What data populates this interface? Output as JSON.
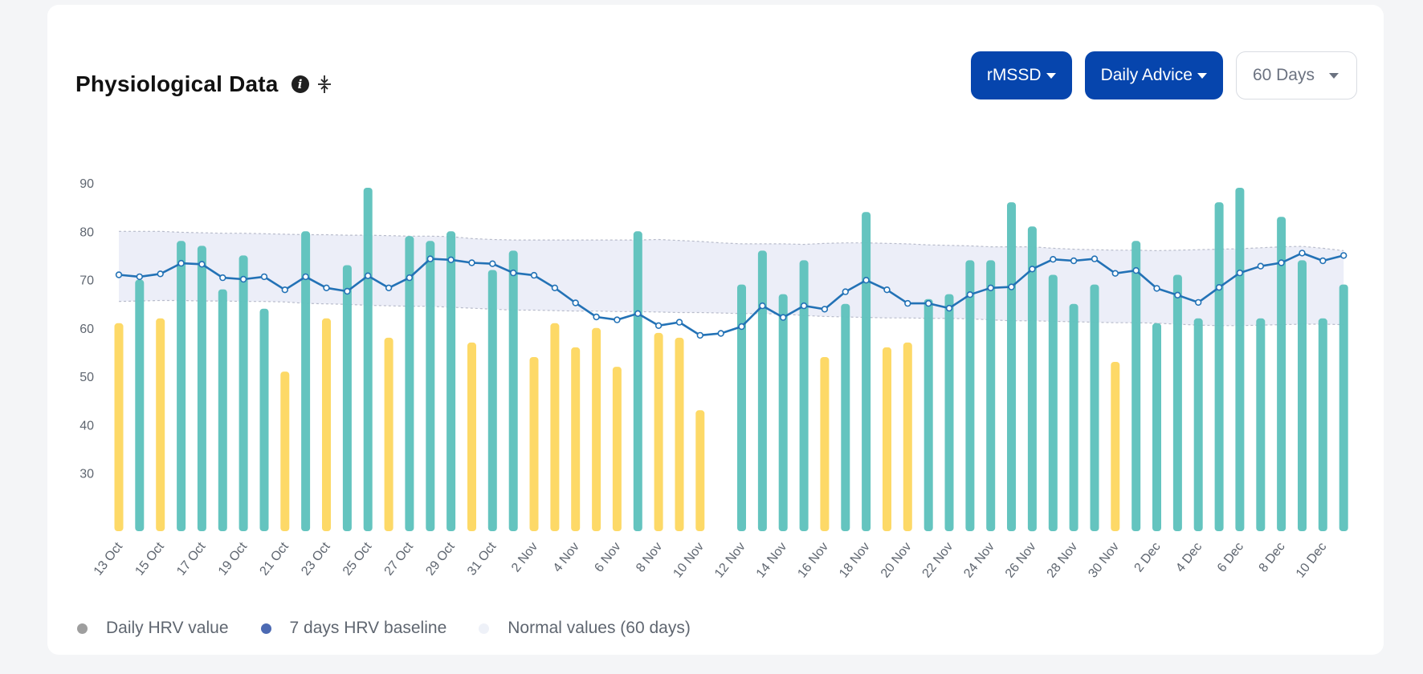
{
  "header": {
    "title": "Physiological Data",
    "info_icon": "info-icon",
    "collapse_icon": "collapse-icon"
  },
  "controls": {
    "metric": "rMSSD",
    "advice": "Daily Advice",
    "range": "60 Days"
  },
  "colors": {
    "normal_bar": "#5fc2bd",
    "low_bar": "#fdd862",
    "baseline_line": "#2372b6",
    "band_fill": "#eceef8",
    "band_edge": "#b8bccb",
    "axis_text": "#5f6670"
  },
  "legend": [
    {
      "label": "Daily HRV value",
      "color": "#9e9e9e"
    },
    {
      "label": "7 days HRV baseline",
      "color": "#4c6ab3"
    },
    {
      "label": "Normal values (60 days)",
      "color": "#eef1f8"
    }
  ],
  "chart_data": {
    "type": "bar",
    "yticks": [
      30,
      40,
      50,
      60,
      70,
      80,
      90
    ],
    "ylim": [
      18,
      90
    ],
    "x_tick_labels": [
      "13 Oct",
      "15 Oct",
      "17 Oct",
      "19 Oct",
      "21 Oct",
      "23 Oct",
      "25 Oct",
      "27 Oct",
      "29 Oct",
      "31 Oct",
      "2 Nov",
      "4 Nov",
      "6 Nov",
      "8 Nov",
      "10 Nov",
      "12 Nov",
      "14 Nov",
      "16 Nov",
      "18 Nov",
      "20 Nov",
      "22 Nov",
      "24 Nov",
      "26 Nov",
      "28 Nov",
      "30 Nov",
      "2 Dec",
      "4 Dec",
      "6 Dec",
      "8 Dec",
      "10 Dec"
    ],
    "series": [
      {
        "values": [
          61,
          70,
          62,
          78,
          77,
          68,
          75,
          64,
          51,
          80,
          62,
          73,
          89,
          58,
          79,
          78,
          80,
          57,
          72,
          76,
          54,
          61,
          56,
          60,
          52,
          80,
          59,
          58,
          43,
          null,
          69,
          76,
          67,
          74,
          54,
          65,
          84,
          56,
          57,
          66,
          67,
          74,
          74,
          86,
          81,
          71,
          65,
          69,
          53,
          78,
          61,
          71,
          62,
          86,
          89,
          62,
          83,
          74,
          62,
          69
        ],
        "status": [
          "low",
          "normal",
          "low",
          "normal",
          "normal",
          "normal",
          "normal",
          "normal",
          "low",
          "normal",
          "low",
          "normal",
          "normal",
          "low",
          "normal",
          "normal",
          "normal",
          "low",
          "normal",
          "normal",
          "low",
          "low",
          "low",
          "low",
          "low",
          "normal",
          "low",
          "low",
          "low",
          "none",
          "normal",
          "normal",
          "normal",
          "normal",
          "low",
          "normal",
          "normal",
          "low",
          "low",
          "normal",
          "normal",
          "normal",
          "normal",
          "normal",
          "normal",
          "normal",
          "normal",
          "normal",
          "low",
          "normal",
          "normal",
          "normal",
          "normal",
          "normal",
          "normal",
          "normal",
          "normal",
          "normal",
          "normal",
          "normal"
        ]
      },
      {
        "values": [
          71,
          70.6,
          71.2,
          73.4,
          73.2,
          70.4,
          70.1,
          70.6,
          67.9,
          70.6,
          68.3,
          67.6,
          70.8,
          68.3,
          70.4,
          74.3,
          74.1,
          73.5,
          73.3,
          71.4,
          70.9,
          68.3,
          65.2,
          62.3,
          61.7,
          63,
          60.5,
          61.2,
          58.5,
          58.9,
          60.3,
          64.6,
          62.2,
          64.6,
          63.9,
          67.5,
          69.9,
          67.9,
          65.1,
          65.1,
          64.1,
          66.9,
          68.3,
          68.5,
          72.2,
          74.2,
          73.9,
          74.3,
          71.3,
          71.9,
          68.2,
          66.8,
          65.3,
          68.4,
          71.4,
          72.8,
          73.5,
          75.5,
          73.9,
          75
        ]
      }
    ],
    "band": {
      "upper": [
        80,
        80,
        80,
        79.8,
        79.7,
        79.6,
        79.6,
        79.5,
        79.4,
        79.3,
        79.3,
        79.2,
        79.2,
        79.1,
        79,
        79,
        78.9,
        78.5,
        78.3,
        78.2,
        78.2,
        78.2,
        78.2,
        78.2,
        78.2,
        78.2,
        78.3,
        78.1,
        77.9,
        77.6,
        77.4,
        77.4,
        77.4,
        77.3,
        77.5,
        77.6,
        77.6,
        77.5,
        77.4,
        77.2,
        77.1,
        77,
        76.8,
        76.8,
        76.8,
        76.5,
        76.3,
        76.2,
        76.1,
        76.1,
        76,
        76.1,
        76.2,
        76.3,
        76.4,
        76.6,
        76.8,
        76.9,
        76.5,
        76
      ],
      "lower": [
        65.5,
        65.6,
        65.7,
        65.7,
        65.6,
        65.6,
        65.5,
        65.5,
        65.4,
        65.1,
        65,
        64.9,
        64.7,
        64.6,
        64.5,
        64.5,
        64.3,
        64.1,
        63.9,
        63.7,
        63.7,
        63.6,
        63.5,
        63.5,
        63.4,
        63.4,
        63.3,
        63.2,
        63.2,
        63.1,
        63,
        63,
        62.9,
        62.6,
        62.4,
        62.3,
        62.2,
        62.1,
        62.1,
        62,
        62,
        61.9,
        61.7,
        61.5,
        61.5,
        61.4,
        61.3,
        61.2,
        61.1,
        61.1,
        61,
        60.8,
        60.6,
        60.5,
        60.5,
        60.6,
        60.7,
        60.8,
        60.8,
        60.7
      ]
    }
  }
}
